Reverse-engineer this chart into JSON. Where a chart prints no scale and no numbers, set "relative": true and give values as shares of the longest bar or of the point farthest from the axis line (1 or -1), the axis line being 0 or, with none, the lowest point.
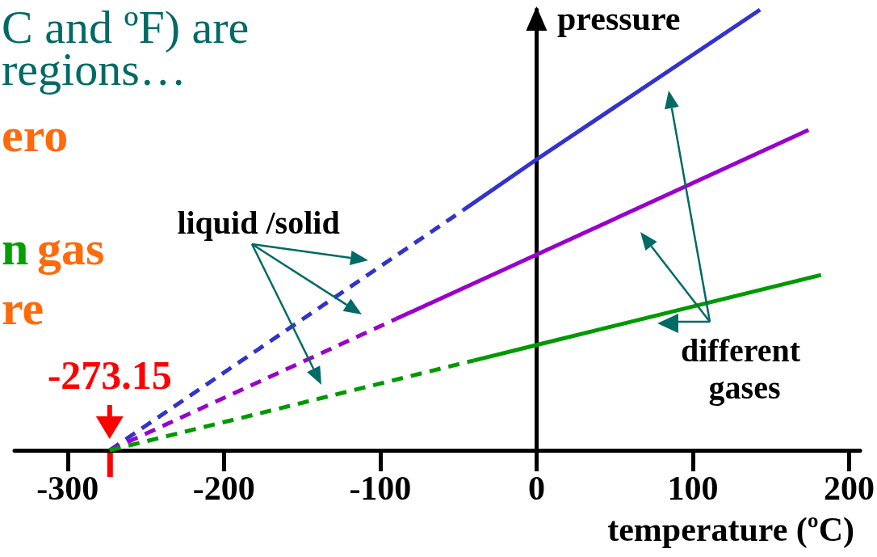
{
  "chart_data": {
    "type": "line",
    "relative": true,
    "xlabel": "temperature (ºC)",
    "ylabel": "pressure",
    "xlim": [
      -334,
      207
    ],
    "xticks": [
      -300,
      -200,
      -100,
      0,
      100,
      200
    ],
    "tick_labels": "x",
    "marker": "none",
    "series": [
      {
        "color": "#3333cc",
        "line_style": "dashed",
        "x": [
          -273.15,
          -47
        ],
        "values": [
          0,
          0.545
        ]
      },
      {
        "color": "#3333cc",
        "line_style": "solid",
        "x": [
          -47,
          0,
          143
        ],
        "values": [
          0.545,
          0.66,
          1
        ]
      },
      {
        "color": "#9900cc",
        "line_style": "dashed",
        "x": [
          -273.15,
          -90
        ],
        "values": [
          0,
          0.298
        ]
      },
      {
        "color": "#9900cc",
        "line_style": "solid",
        "x": [
          -90,
          0,
          174
        ],
        "values": [
          0.298,
          0.444,
          0.727
        ]
      },
      {
        "color": "#009900",
        "line_style": "dashed",
        "x": [
          -273.15,
          -40
        ],
        "values": [
          0,
          0.204
        ]
      },
      {
        "color": "#009900",
        "line_style": "solid",
        "x": [
          -40,
          0,
          182
        ],
        "values": [
          0.204,
          0.239,
          0.398
        ]
      }
    ],
    "annotations": [
      "C and ºF) are",
      "regions…",
      "ero",
      "n",
      "gas",
      "re",
      "liquid /solid",
      "different gases",
      {
        "text": "-273.15",
        "x": -273.15,
        "y": 0
      }
    ]
  }
}
